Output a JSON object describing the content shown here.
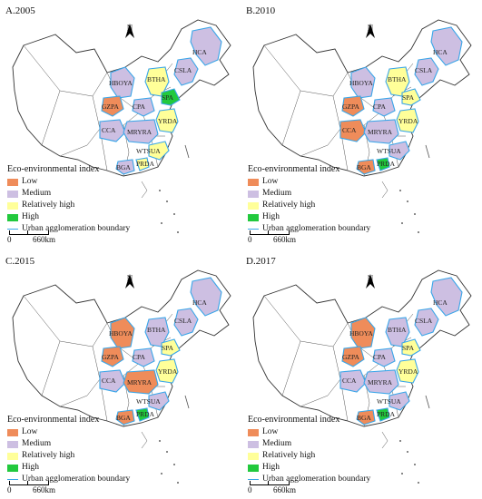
{
  "colors": {
    "Low": "#ef8c5a",
    "Medium": "#cdbfe2",
    "Relatively high": "#ffff99",
    "High": "#22c93d",
    "boundary": "#3aa6e8",
    "province_line": "#555555"
  },
  "legend": {
    "title": "Eco-environmental index",
    "items": [
      {
        "label": "Low",
        "color": "#ef8c5a"
      },
      {
        "label": "Medium",
        "color": "#cdbfe2"
      },
      {
        "label": "Relatively high",
        "color": "#ffff99"
      },
      {
        "label": "High",
        "color": "#22c93d"
      }
    ],
    "boundary_label": "Urban agglomeration boundary"
  },
  "scale_bar": {
    "start": "0",
    "end": "660km"
  },
  "north_label": "N",
  "regions": [
    "HCA",
    "CSLA",
    "HBOYA",
    "BTHA",
    "SPA",
    "GZPA",
    "CPA",
    "YRDA",
    "CCA",
    "MRYRA",
    "WTSUA",
    "BGA",
    "PRDA"
  ],
  "panels": [
    {
      "title": "A.2005",
      "classes": {
        "HCA": "Medium",
        "CSLA": "Medium",
        "HBOYA": "Medium",
        "BTHA": "Relatively high",
        "SPA": "High",
        "GZPA": "Low",
        "CPA": "Medium",
        "YRDA": "Relatively high",
        "CCA": "Medium",
        "MRYRA": "Medium",
        "WTSUA": "Relatively high",
        "BGA": "Medium",
        "PRDA": "Relatively high"
      }
    },
    {
      "title": "B.2010",
      "classes": {
        "HCA": "Medium",
        "CSLA": "Medium",
        "HBOYA": "Medium",
        "BTHA": "Relatively high",
        "SPA": "Relatively high",
        "GZPA": "Low",
        "CPA": "Medium",
        "YRDA": "Relatively high",
        "CCA": "Low",
        "MRYRA": "Medium",
        "WTSUA": "Medium",
        "BGA": "Low",
        "PRDA": "High"
      }
    },
    {
      "title": "C.2015",
      "classes": {
        "HCA": "Medium",
        "CSLA": "Medium",
        "HBOYA": "Low",
        "BTHA": "Medium",
        "SPA": "Relatively high",
        "GZPA": "Low",
        "CPA": "Medium",
        "YRDA": "Relatively high",
        "CCA": "Medium",
        "MRYRA": "Low",
        "WTSUA": "Medium",
        "BGA": "Low",
        "PRDA": "High"
      }
    },
    {
      "title": "D.2017",
      "classes": {
        "HCA": "Medium",
        "CSLA": "Medium",
        "HBOYA": "Low",
        "BTHA": "Medium",
        "SPA": "Relatively high",
        "GZPA": "Low",
        "CPA": "Medium",
        "YRDA": "Relatively high",
        "CCA": "Medium",
        "MRYRA": "Medium",
        "WTSUA": "Medium",
        "BGA": "Low",
        "PRDA": "High"
      }
    }
  ]
}
